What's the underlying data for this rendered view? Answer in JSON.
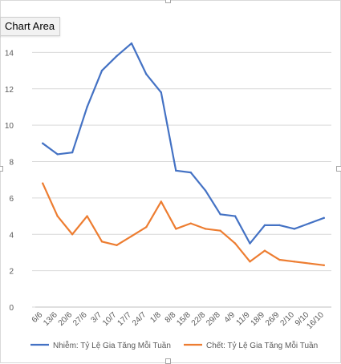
{
  "chart_data": {
    "type": "line",
    "categories": [
      "6/6",
      "13/6",
      "20/6",
      "27/6",
      "3/7",
      "10/7",
      "17/7",
      "24/7",
      "1/8",
      "8/8",
      "15/8",
      "22/8",
      "29/8",
      "4/9",
      "11/9",
      "18/9",
      "26/9",
      "2/10",
      "9/10",
      "16/10"
    ],
    "series": [
      {
        "name": "Nhiễm: Tỷ Lệ Gia Tăng Mỗi Tuần",
        "color": "#4472c4",
        "values": [
          9.0,
          8.4,
          8.5,
          11.0,
          13.0,
          13.8,
          14.5,
          12.8,
          11.8,
          7.5,
          7.4,
          6.4,
          5.1,
          5.0,
          3.5,
          4.5,
          4.5,
          4.3,
          4.6,
          4.9
        ]
      },
      {
        "name": "Chết: Tỷ Lệ Gia Tăng Mỗi Tuần",
        "color": "#ed7d31",
        "values": [
          6.8,
          5.0,
          4.0,
          5.0,
          3.6,
          3.4,
          3.9,
          4.4,
          5.8,
          4.3,
          4.6,
          4.3,
          4.2,
          3.5,
          2.5,
          3.1,
          2.6,
          2.5,
          2.4,
          2.3
        ]
      }
    ],
    "y_ticks": [
      "0",
      "2",
      "4",
      "6",
      "8",
      "10",
      "12",
      "14"
    ],
    "ylim": [
      0,
      16
    ],
    "grid": true,
    "legend": "bottom"
  },
  "ui": {
    "tooltip": "Chart Area"
  }
}
